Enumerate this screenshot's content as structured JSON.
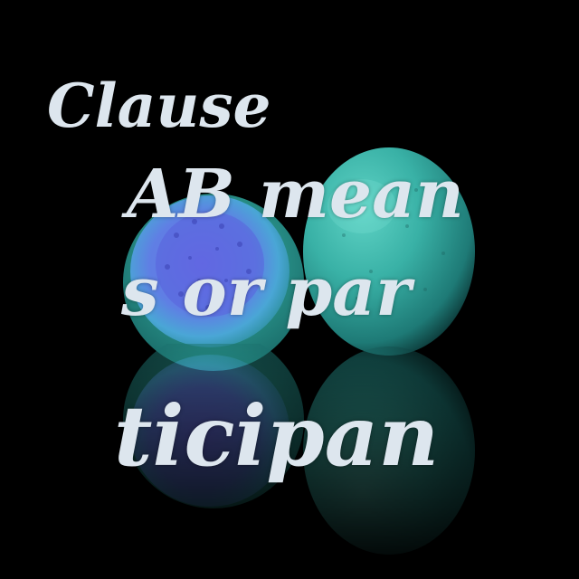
{
  "caption": {
    "lines": [
      "Clause",
      "AB mean",
      "s or par",
      "ticipan"
    ]
  },
  "colors": {
    "background": "#000000",
    "text": "#dde6ee",
    "cut_guava_flesh": "#6f86e6",
    "guava_skin": "#2fa39a"
  },
  "icons": [
    "halved-guava",
    "whole-guava",
    "reflection"
  ]
}
